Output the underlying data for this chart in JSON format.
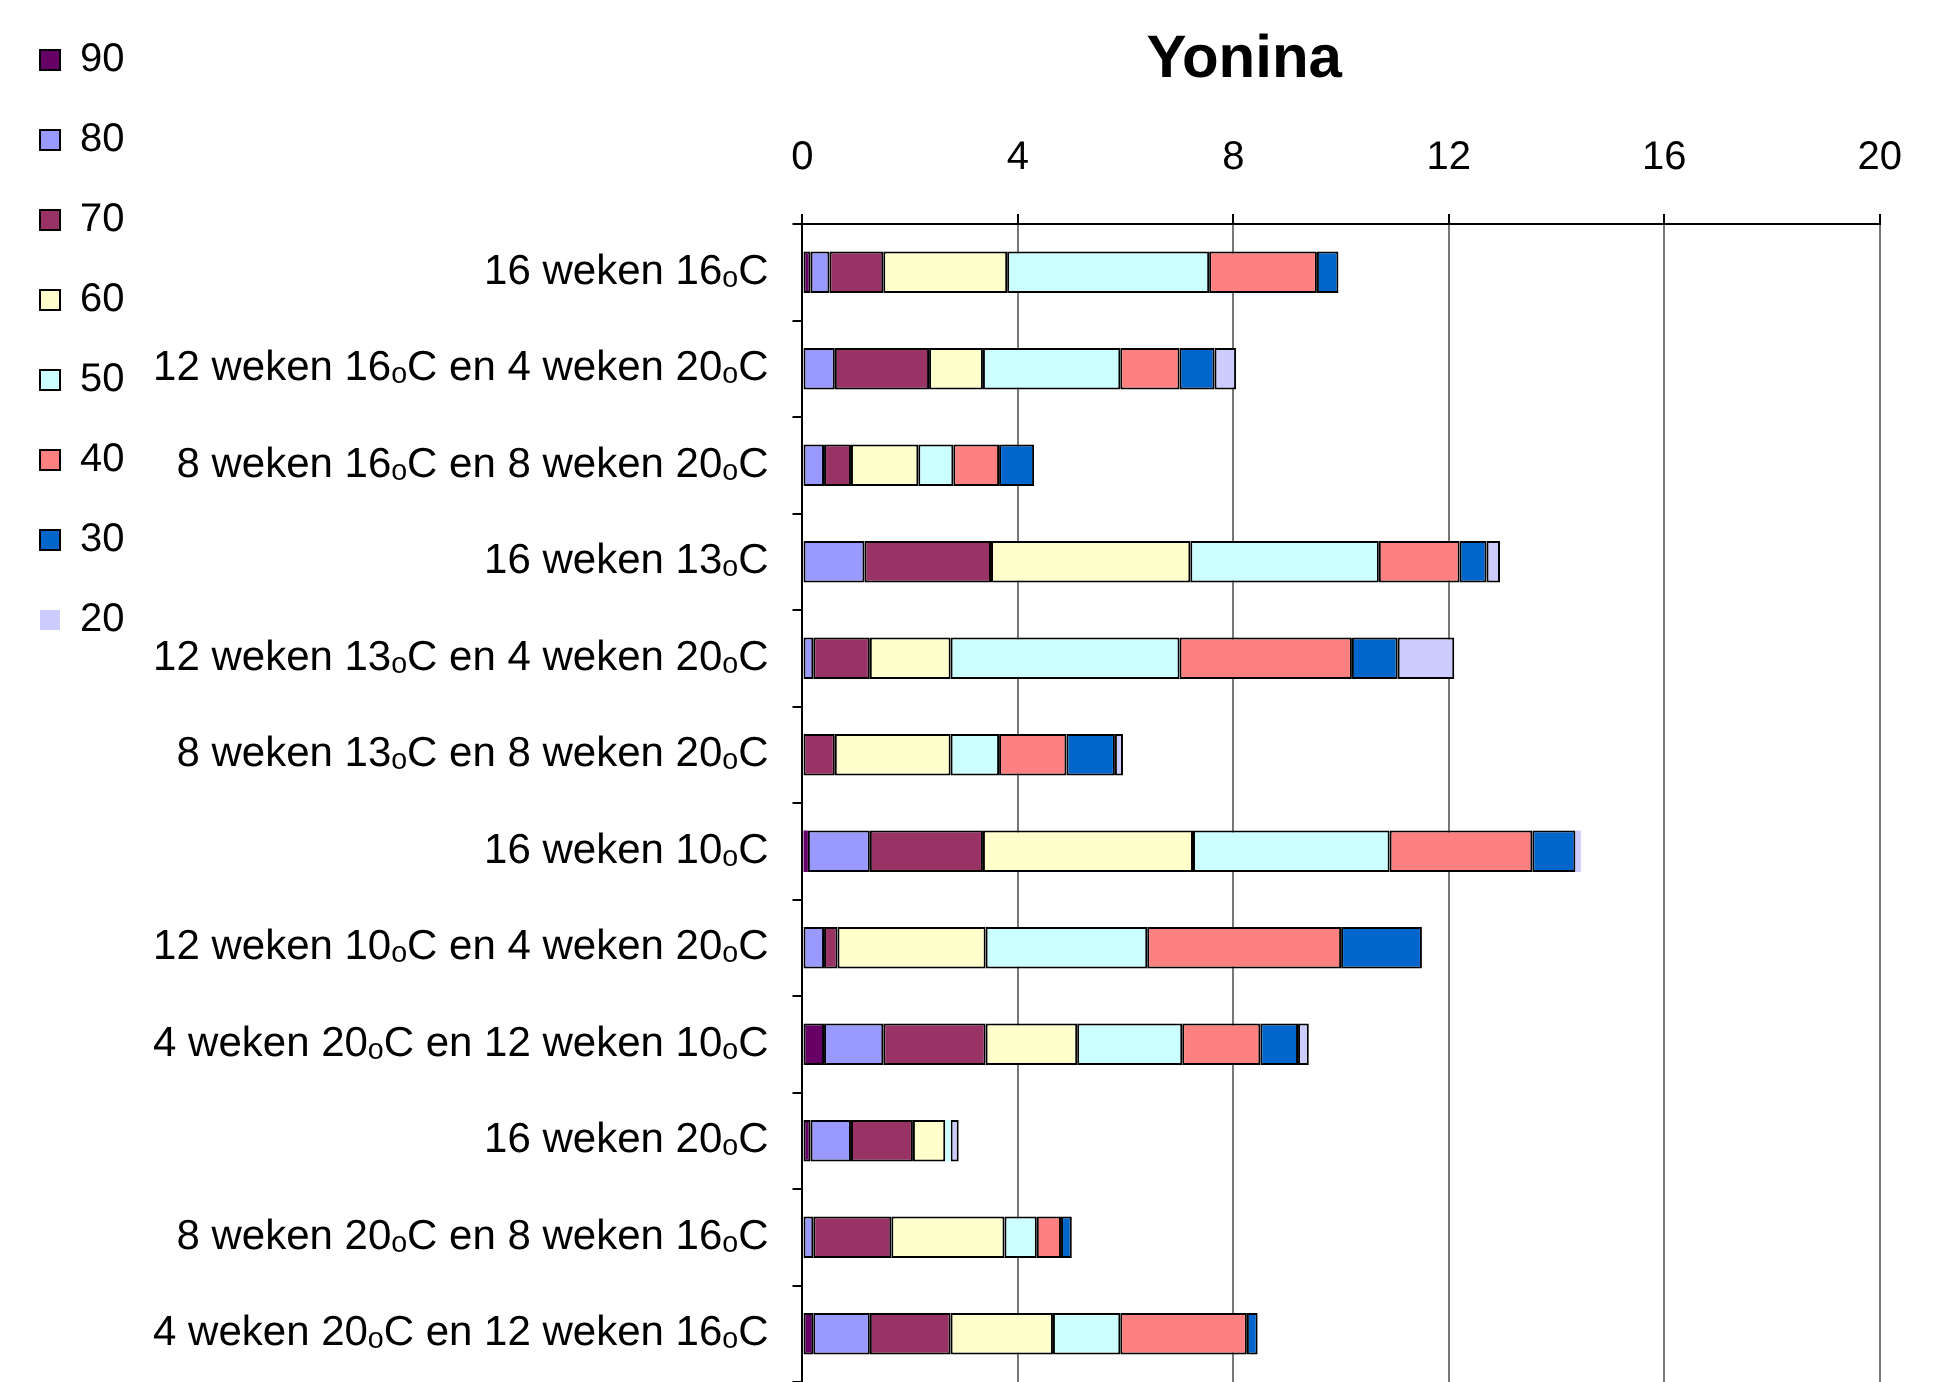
{
  "chart_data": {
    "type": "bar",
    "title": "Yonina",
    "orientation": "horizontal",
    "stacked": true,
    "categories": [
      "16 weken 16ₒC",
      "12 weken 16ₒC en 4 weken 20ₒC",
      "8 weken 16ₒC en 8 weken 20ₒC",
      "16 weken 13ₒC",
      "12 weken 13ₒC en 4 weken 20ₒC",
      "8 weken 13ₒC en 8 weken 20ₒC",
      "16 weken 10ₒC",
      "12 weken 10ₒC en 4 weken 20ₒC",
      "4 weken 20ₒC en 12 weken 10ₒC",
      "16 weken 20ₒC",
      "8 weken 20ₒC en 8 weken 16ₒC",
      "4 weken 20ₒC en 12 weken 16ₒC"
    ],
    "series": [
      {
        "name": "90",
        "color": "#660066",
        "values": [
          0.15,
          0,
          0,
          0,
          0,
          0,
          0.1,
          0,
          0.4,
          0.15,
          0,
          0.2
        ]
      },
      {
        "name": "80",
        "color": "#9999ff",
        "values": [
          0.35,
          0.6,
          0.4,
          1.15,
          0.2,
          0,
          1.15,
          0.4,
          1.1,
          0.75,
          0.2,
          1.05
        ]
      },
      {
        "name": "70",
        "color": "#993366",
        "values": [
          1.0,
          1.75,
          0.5,
          2.35,
          1.05,
          0.6,
          2.1,
          0.25,
          1.9,
          1.15,
          1.45,
          1.5
        ]
      },
      {
        "name": "60",
        "color": "#ffffcc",
        "values": [
          2.3,
          1.0,
          1.25,
          3.7,
          1.5,
          2.15,
          3.9,
          2.75,
          1.7,
          0.6,
          2.1,
          1.9
        ]
      },
      {
        "name": "50",
        "color": "#ccffff",
        "values": [
          3.75,
          2.55,
          0.65,
          3.5,
          4.25,
          0.9,
          3.65,
          3.0,
          1.95,
          0.1,
          0.6,
          1.25
        ]
      },
      {
        "name": "40",
        "color": "#ff8080",
        "values": [
          2.0,
          1.1,
          0.85,
          1.5,
          3.2,
          1.25,
          2.65,
          3.6,
          1.45,
          0,
          0.45,
          2.35
        ]
      },
      {
        "name": "30",
        "color": "#0066cc",
        "values": [
          0.4,
          0.65,
          0.65,
          0.5,
          0.85,
          0.9,
          0.8,
          1.5,
          0.7,
          0,
          0.2,
          0.2
        ]
      },
      {
        "name": "20",
        "color": "#ccccff",
        "values": [
          0,
          0.4,
          0,
          0.25,
          1.05,
          0.15,
          0.1,
          0,
          0.2,
          0.15,
          0,
          0
        ]
      }
    ],
    "xlim": [
      0,
      20
    ],
    "xticks": [
      0,
      4,
      8,
      12,
      16,
      20
    ],
    "grid": "x",
    "legend": "top left"
  }
}
